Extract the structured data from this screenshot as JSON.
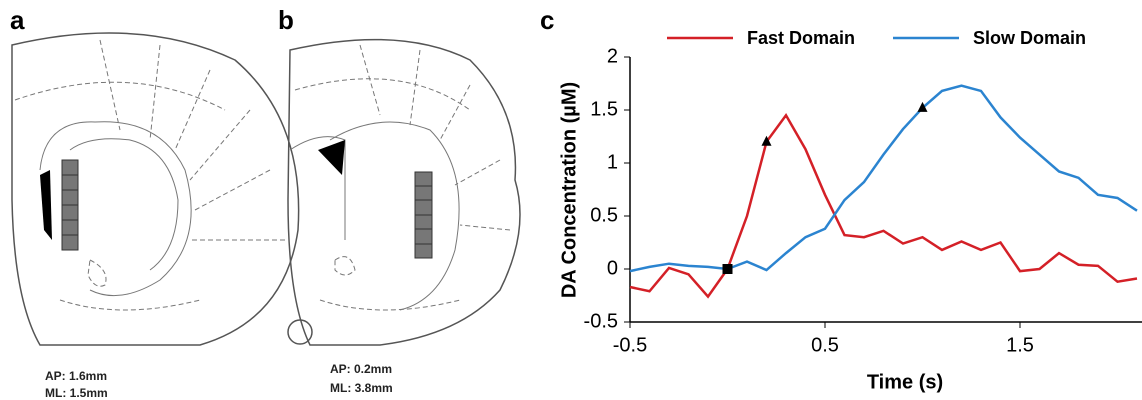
{
  "panels": {
    "a": {
      "label": "a",
      "ap": "AP: 1.6mm",
      "ml": "ML: 1.5mm"
    },
    "b": {
      "label": "b",
      "ap": "AP: 0.2mm",
      "ml": "ML: 3.8mm"
    },
    "c": {
      "label": "c"
    }
  },
  "chart_data": {
    "type": "line",
    "x_label": "Time (s)",
    "y_label": "DA Concentration (µM)",
    "x": [
      -0.5,
      -0.4,
      -0.3,
      -0.2,
      -0.1,
      0,
      0.1,
      0.2,
      0.3,
      0.4,
      0.5,
      0.6,
      0.7,
      0.8,
      0.9,
      1.0,
      1.1,
      1.2,
      1.3,
      1.4,
      1.5,
      1.6,
      1.7,
      1.8,
      1.9,
      2.0,
      2.1
    ],
    "series": [
      {
        "name": "Fast Domain",
        "color": "#d42027",
        "values": [
          -0.17,
          -0.21,
          0.01,
          -0.05,
          -0.26,
          0,
          0.5,
          1.2,
          1.45,
          1.13,
          0.7,
          0.32,
          0.3,
          0.36,
          0.24,
          0.3,
          0.18,
          0.26,
          0.18,
          0.25,
          -0.02,
          0,
          0.15,
          0.04,
          0.03,
          -0.12,
          -0.09
        ]
      },
      {
        "name": "Slow Domain",
        "color": "#2b84d0",
        "values": [
          -0.02,
          0.02,
          0.05,
          0.03,
          0.02,
          0,
          0.07,
          -0.01,
          0.15,
          0.3,
          0.38,
          0.65,
          0.82,
          1.08,
          1.32,
          1.52,
          1.68,
          1.73,
          1.68,
          1.43,
          1.24,
          1.08,
          0.92,
          0.86,
          0.7,
          0.67,
          0.55
        ]
      }
    ],
    "markers": [
      {
        "x": 0,
        "y": 0,
        "shape": "square"
      },
      {
        "x": 0.2,
        "y": 1.2,
        "shape": "triangle"
      },
      {
        "x": 1.0,
        "y": 1.52,
        "shape": "triangle"
      }
    ],
    "xlim": [
      -0.5,
      2.1
    ],
    "ylim": [
      -0.5,
      2
    ],
    "xticks": [
      -0.5,
      0.5,
      1.5
    ],
    "yticks": [
      -0.5,
      0,
      0.5,
      1,
      1.5,
      2
    ],
    "legend": "top"
  }
}
